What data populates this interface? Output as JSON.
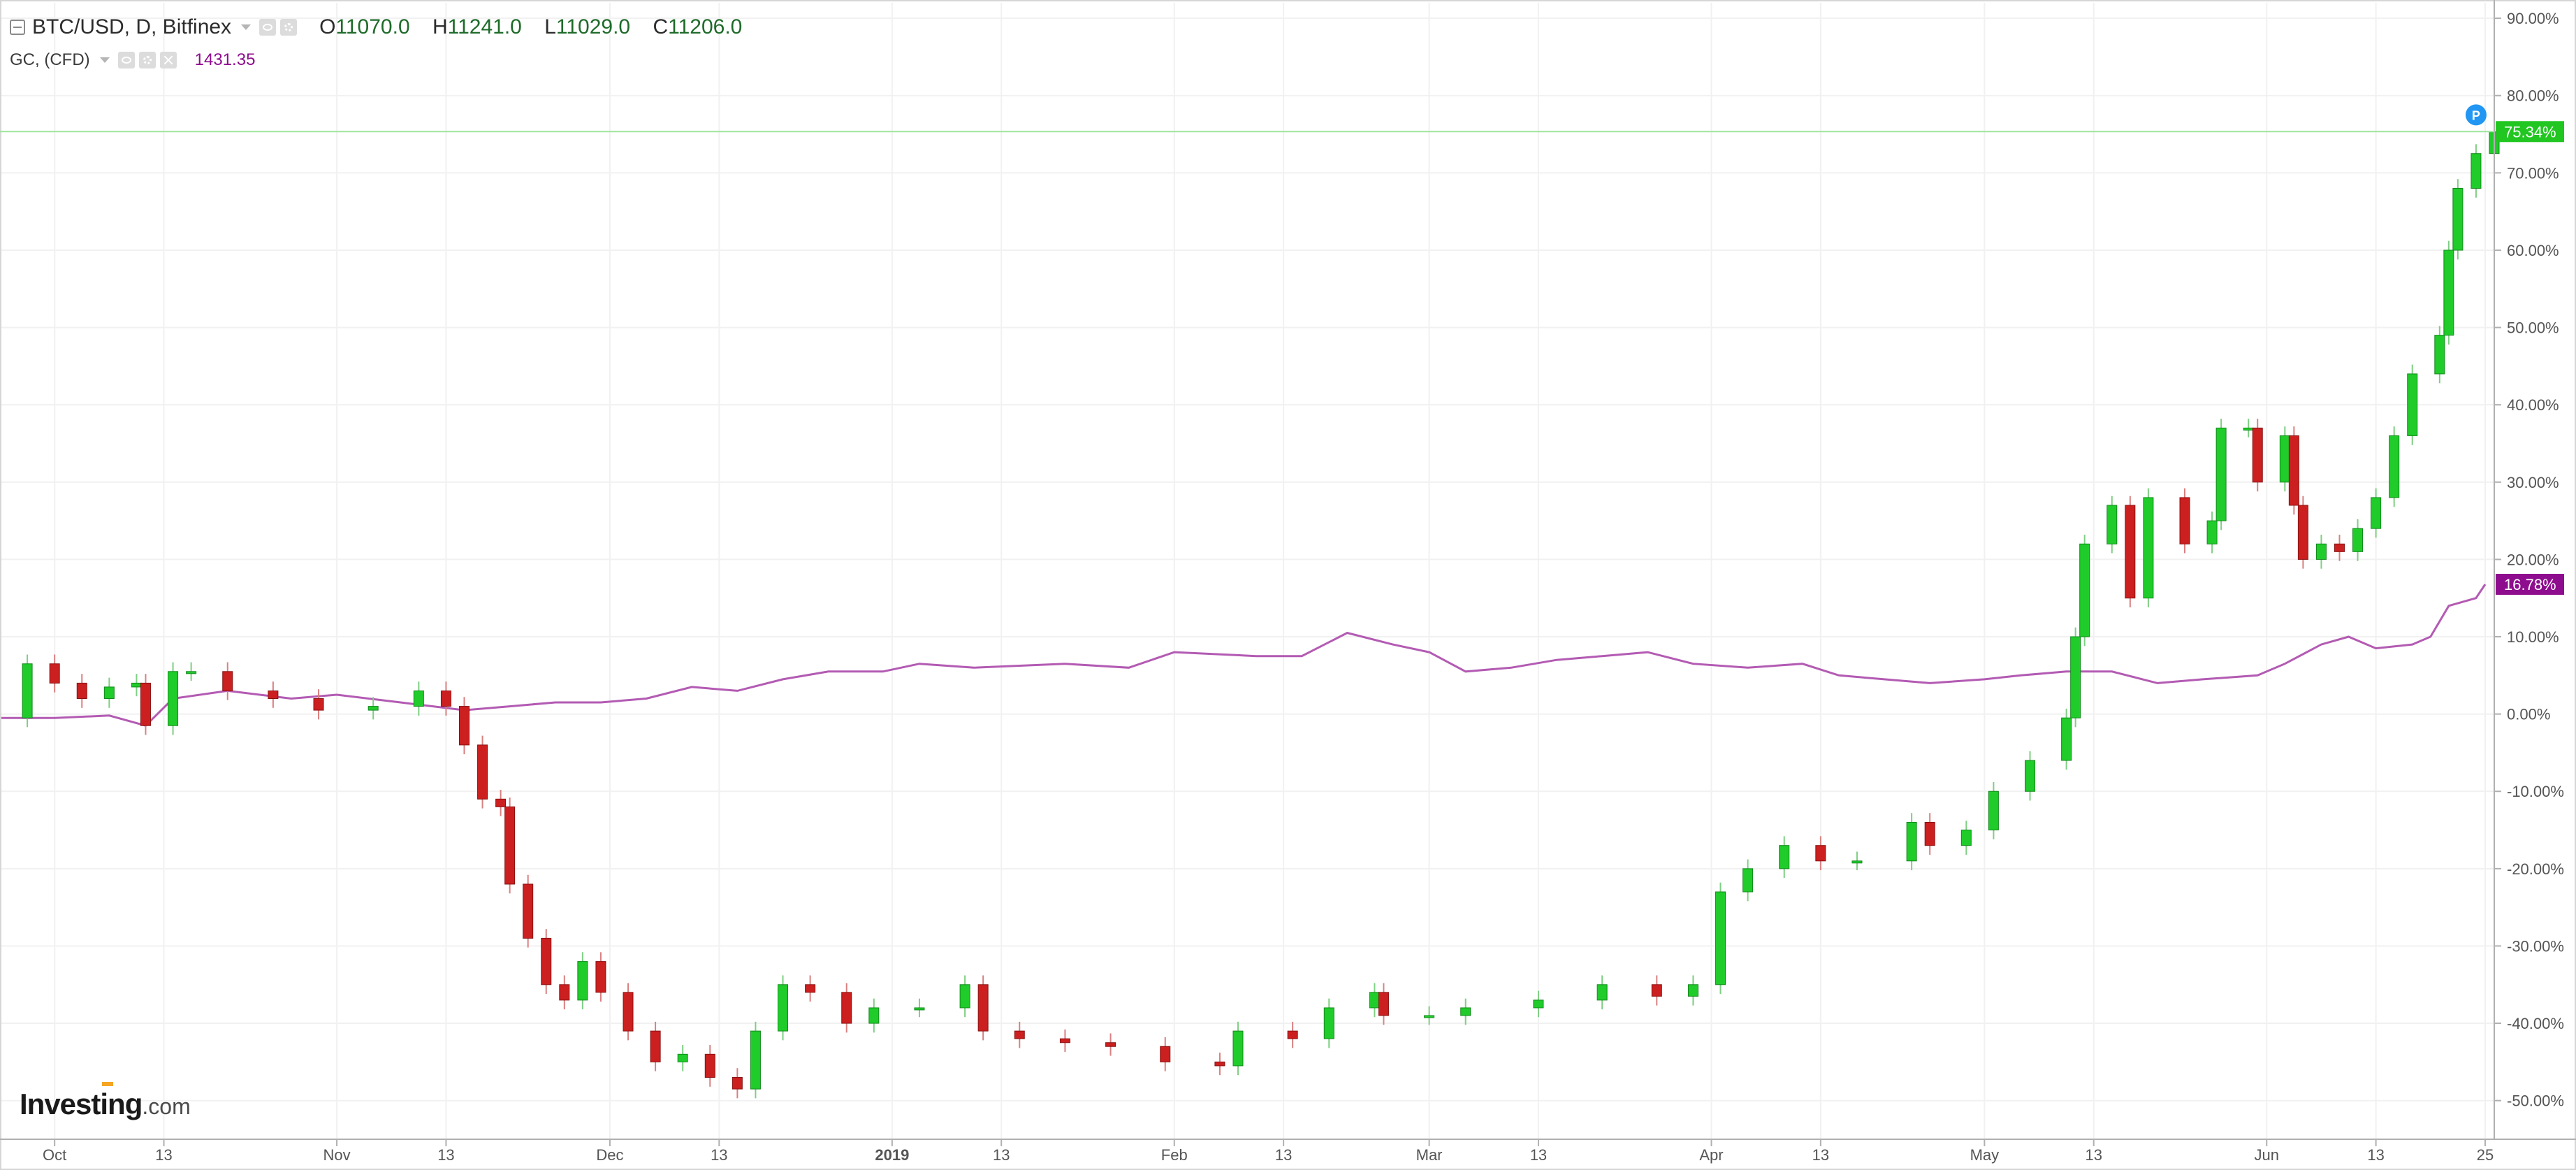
{
  "legend": {
    "symbol": "BTC/USD, D, Bitfinex",
    "open_label": "O",
    "open": "11070.0",
    "high_label": "H",
    "high": "11241.0",
    "low_label": "L",
    "low": "11029.0",
    "close_label": "C",
    "close": "11206.0",
    "compare_symbol": "GC, (CFD)",
    "compare_value": "1431.35"
  },
  "brand": {
    "name": "Investing",
    "suffix": ".com"
  },
  "colors": {
    "up": "#1fcc2a",
    "down": "#cc1f1f",
    "compare": "#b35bb3",
    "last_price": "#21c621",
    "compare_tag": "#8e0d8e",
    "pin": "#2196f3",
    "grid": "#f1f1f1"
  },
  "chart_data": {
    "type": "line",
    "yaxis": {
      "unit": "%",
      "min": -55,
      "max": 92,
      "side": "right",
      "ticks": [
        "90.00%",
        "80.00%",
        "70.00%",
        "60.00%",
        "50.00%",
        "40.00%",
        "30.00%",
        "20.00%",
        "10.00%",
        "0.00%",
        "-10.00%",
        "-20.00%",
        "-30.00%",
        "-40.00%",
        "-50.00%"
      ],
      "tick_values": [
        90,
        80,
        70,
        60,
        50,
        40,
        30,
        20,
        10,
        0,
        -10,
        -20,
        -30,
        -40,
        -50
      ]
    },
    "xaxis": {
      "start": "2018-09-25",
      "end": "2019-06-26",
      "ticks": [
        {
          "date": "2018-10-01",
          "label": "Oct"
        },
        {
          "date": "2018-10-13",
          "label": "13"
        },
        {
          "date": "2018-11-01",
          "label": "Nov"
        },
        {
          "date": "2018-11-13",
          "label": "13"
        },
        {
          "date": "2018-12-01",
          "label": "Dec"
        },
        {
          "date": "2018-12-13",
          "label": "13"
        },
        {
          "date": "2019-01-01",
          "label": "2019"
        },
        {
          "date": "2019-01-13",
          "label": "13"
        },
        {
          "date": "2019-02-01",
          "label": "Feb"
        },
        {
          "date": "2019-02-13",
          "label": "13"
        },
        {
          "date": "2019-03-01",
          "label": "Mar"
        },
        {
          "date": "2019-03-13",
          "label": "13"
        },
        {
          "date": "2019-04-01",
          "label": "Apr"
        },
        {
          "date": "2019-04-13",
          "label": "13"
        },
        {
          "date": "2019-05-01",
          "label": "May"
        },
        {
          "date": "2019-05-13",
          "label": "13"
        },
        {
          "date": "2019-06-01",
          "label": "Jun"
        },
        {
          "date": "2019-06-13",
          "label": "13"
        },
        {
          "date": "2019-06-25",
          "label": "25"
        }
      ]
    },
    "grid": true,
    "series": [
      {
        "name": "BTC/USD, D, Bitfinex",
        "kind": "candlestick",
        "close_pct": [
          [
            "2018-09-25",
            -0.5
          ],
          [
            "2018-09-28",
            6.5
          ],
          [
            "2018-10-01",
            4
          ],
          [
            "2018-10-04",
            2
          ],
          [
            "2018-10-07",
            3.5
          ],
          [
            "2018-10-10",
            4
          ],
          [
            "2018-10-11",
            -1.5
          ],
          [
            "2018-10-14",
            5.5
          ],
          [
            "2018-10-16",
            5.5
          ],
          [
            "2018-10-20",
            3
          ],
          [
            "2018-10-25",
            2
          ],
          [
            "2018-10-30",
            0.5
          ],
          [
            "2018-11-05",
            1
          ],
          [
            "2018-11-10",
            3
          ],
          [
            "2018-11-13",
            1
          ],
          [
            "2018-11-15",
            -4
          ],
          [
            "2018-11-17",
            -11
          ],
          [
            "2018-11-19",
            -12
          ],
          [
            "2018-11-20",
            -22
          ],
          [
            "2018-11-22",
            -29
          ],
          [
            "2018-11-24",
            -35
          ],
          [
            "2018-11-26",
            -37
          ],
          [
            "2018-11-28",
            -32
          ],
          [
            "2018-11-30",
            -36
          ],
          [
            "2018-12-03",
            -41
          ],
          [
            "2018-12-06",
            -45
          ],
          [
            "2018-12-09",
            -44
          ],
          [
            "2018-12-12",
            -47
          ],
          [
            "2018-12-15",
            -48.5
          ],
          [
            "2018-12-17",
            -41
          ],
          [
            "2018-12-20",
            -35
          ],
          [
            "2018-12-23",
            -36
          ],
          [
            "2018-12-27",
            -40
          ],
          [
            "2018-12-30",
            -38
          ],
          [
            "2019-01-04",
            -38
          ],
          [
            "2019-01-09",
            -35
          ],
          [
            "2019-01-11",
            -41
          ],
          [
            "2019-01-15",
            -42
          ],
          [
            "2019-01-20",
            -42.5
          ],
          [
            "2019-01-25",
            -43
          ],
          [
            "2019-01-31",
            -45
          ],
          [
            "2019-02-06",
            -45.5
          ],
          [
            "2019-02-08",
            -41
          ],
          [
            "2019-02-14",
            -42
          ],
          [
            "2019-02-18",
            -38
          ],
          [
            "2019-02-23",
            -36
          ],
          [
            "2019-02-24",
            -39
          ],
          [
            "2019-03-01",
            -39
          ],
          [
            "2019-03-05",
            -38
          ],
          [
            "2019-03-13",
            -37
          ],
          [
            "2019-03-20",
            -35
          ],
          [
            "2019-03-26",
            -36.5
          ],
          [
            "2019-03-30",
            -35
          ],
          [
            "2019-04-02",
            -23
          ],
          [
            "2019-04-05",
            -20
          ],
          [
            "2019-04-09",
            -17
          ],
          [
            "2019-04-13",
            -19
          ],
          [
            "2019-04-17",
            -19
          ],
          [
            "2019-04-23",
            -14
          ],
          [
            "2019-04-25",
            -17
          ],
          [
            "2019-04-29",
            -15
          ],
          [
            "2019-05-02",
            -10
          ],
          [
            "2019-05-06",
            -6
          ],
          [
            "2019-05-10",
            -0.5
          ],
          [
            "2019-05-11",
            10
          ],
          [
            "2019-05-12",
            22
          ],
          [
            "2019-05-15",
            27
          ],
          [
            "2019-05-17",
            15
          ],
          [
            "2019-05-19",
            28
          ],
          [
            "2019-05-23",
            22
          ],
          [
            "2019-05-26",
            25
          ],
          [
            "2019-05-27",
            37
          ],
          [
            "2019-05-30",
            37
          ],
          [
            "2019-05-31",
            30
          ],
          [
            "2019-06-03",
            36
          ],
          [
            "2019-06-04",
            27
          ],
          [
            "2019-06-05",
            20
          ],
          [
            "2019-06-07",
            22
          ],
          [
            "2019-06-09",
            21
          ],
          [
            "2019-06-11",
            24
          ],
          [
            "2019-06-13",
            28
          ],
          [
            "2019-06-15",
            36
          ],
          [
            "2019-06-17",
            44
          ],
          [
            "2019-06-20",
            49
          ],
          [
            "2019-06-21",
            60
          ],
          [
            "2019-06-22",
            68
          ],
          [
            "2019-06-24",
            72.5
          ],
          [
            "2019-06-26",
            75.3
          ]
        ]
      },
      {
        "name": "GC, (CFD)",
        "kind": "line",
        "values": [
          [
            "2018-09-25",
            -0.5
          ],
          [
            "2018-10-01",
            -0.5
          ],
          [
            "2018-10-07",
            -0.2
          ],
          [
            "2018-10-11",
            -1.5
          ],
          [
            "2018-10-14",
            2
          ],
          [
            "2018-10-20",
            3
          ],
          [
            "2018-10-27",
            2
          ],
          [
            "2018-11-01",
            2.5
          ],
          [
            "2018-11-08",
            1.5
          ],
          [
            "2018-11-15",
            0.5
          ],
          [
            "2018-11-20",
            1
          ],
          [
            "2018-11-25",
            1.5
          ],
          [
            "2018-11-30",
            1.5
          ],
          [
            "2018-12-05",
            2
          ],
          [
            "2018-12-10",
            3.5
          ],
          [
            "2018-12-15",
            3
          ],
          [
            "2018-12-20",
            4.5
          ],
          [
            "2018-12-25",
            5.5
          ],
          [
            "2018-12-31",
            5.5
          ],
          [
            "2019-01-04",
            6.5
          ],
          [
            "2019-01-10",
            6
          ],
          [
            "2019-01-20",
            6.5
          ],
          [
            "2019-01-27",
            6
          ],
          [
            "2019-02-01",
            8
          ],
          [
            "2019-02-10",
            7.5
          ],
          [
            "2019-02-15",
            7.5
          ],
          [
            "2019-02-20",
            10.5
          ],
          [
            "2019-02-25",
            9
          ],
          [
            "2019-03-01",
            8
          ],
          [
            "2019-03-05",
            5.5
          ],
          [
            "2019-03-10",
            6
          ],
          [
            "2019-03-15",
            7
          ],
          [
            "2019-03-20",
            7.5
          ],
          [
            "2019-03-25",
            8
          ],
          [
            "2019-03-30",
            6.5
          ],
          [
            "2019-04-05",
            6
          ],
          [
            "2019-04-11",
            6.5
          ],
          [
            "2019-04-15",
            5
          ],
          [
            "2019-04-20",
            4.5
          ],
          [
            "2019-04-25",
            4
          ],
          [
            "2019-05-01",
            4.5
          ],
          [
            "2019-05-05",
            5
          ],
          [
            "2019-05-10",
            5.5
          ],
          [
            "2019-05-15",
            5.5
          ],
          [
            "2019-05-20",
            4
          ],
          [
            "2019-05-25",
            4.5
          ],
          [
            "2019-05-31",
            5
          ],
          [
            "2019-06-03",
            6.5
          ],
          [
            "2019-06-07",
            9
          ],
          [
            "2019-06-10",
            10
          ],
          [
            "2019-06-13",
            8.5
          ],
          [
            "2019-06-17",
            9
          ],
          [
            "2019-06-19",
            10
          ],
          [
            "2019-06-21",
            14
          ],
          [
            "2019-06-24",
            15
          ],
          [
            "2019-06-25",
            16.78
          ]
        ]
      }
    ],
    "last_value_tags": [
      {
        "series": "BTC/USD, D, Bitfinex",
        "label": "75.34%",
        "value": 75.34
      },
      {
        "series": "GC, (CFD)",
        "label": "16.78%",
        "value": 16.78
      }
    ],
    "pin": {
      "label": "P",
      "date": "2019-06-24",
      "value": 77.5
    }
  }
}
